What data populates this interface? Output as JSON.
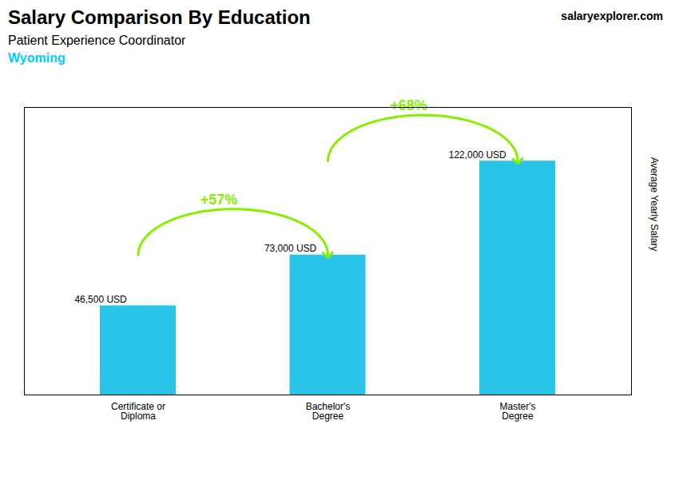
{
  "chart_data": {
    "type": "bar",
    "title": "Salary Comparison By Education",
    "subtitle": "Patient Experience Coordinator",
    "ylabel": "Average Yearly Salary",
    "categories": [
      "Certificate or\nDiploma",
      "Bachelor's\nDegree",
      "Master's\nDegree"
    ],
    "values": [
      46500,
      73000,
      122000
    ],
    "value_labels": [
      "46,500 USD",
      "73,000 USD",
      "122,000 USD"
    ],
    "color": "#29c4e8",
    "ylim": [
      0,
      150000
    ],
    "grid": false,
    "data_labels": true,
    "tick_labels": "x",
    "annotations": [
      {
        "text": "+57%",
        "from": "Certificate or\nDiploma",
        "to": "Bachelor's\nDegree",
        "color": "#88ee00"
      },
      {
        "text": "+68%",
        "from": "Bachelor's\nDegree",
        "to": "Master's\nDegree",
        "color": "#88ee00"
      },
      {
        "text": "Wyoming",
        "color": "#00ccff"
      },
      {
        "text": "salaryexplorer.com"
      }
    ]
  }
}
